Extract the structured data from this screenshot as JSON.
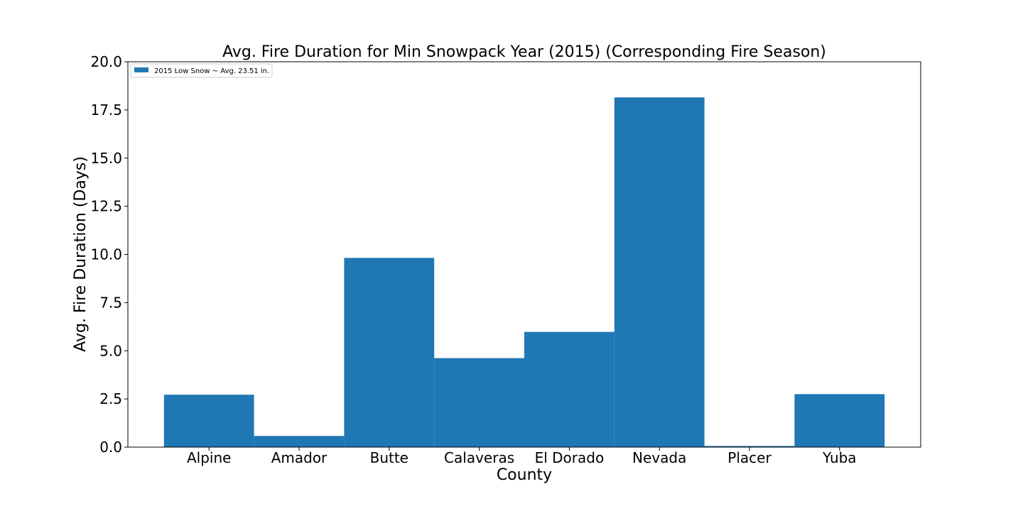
{
  "chart_data": {
    "type": "bar",
    "title": "Avg. Fire Duration for Min Snowpack Year (2015) (Corresponding Fire Season)",
    "xlabel": "County",
    "ylabel": "Avg. Fire Duration (Days)",
    "categories": [
      "Alpine",
      "Amador",
      "Butte",
      "Calaveras",
      "El Dorado",
      "Nevada",
      "Placer",
      "Yuba"
    ],
    "series": [
      {
        "name": "2015 Low Snow ~ Avg. 23.51 in.",
        "values": [
          2.72,
          0.58,
          9.82,
          4.62,
          5.98,
          18.15,
          0.06,
          2.75
        ],
        "color": "#1f77b4"
      }
    ],
    "ylim": [
      0,
      20
    ],
    "yticks": [
      "0.0",
      "2.5",
      "5.0",
      "7.5",
      "10.0",
      "12.5",
      "15.0",
      "17.5",
      "20.0"
    ],
    "grid": false,
    "legend_position": "upper-left"
  }
}
